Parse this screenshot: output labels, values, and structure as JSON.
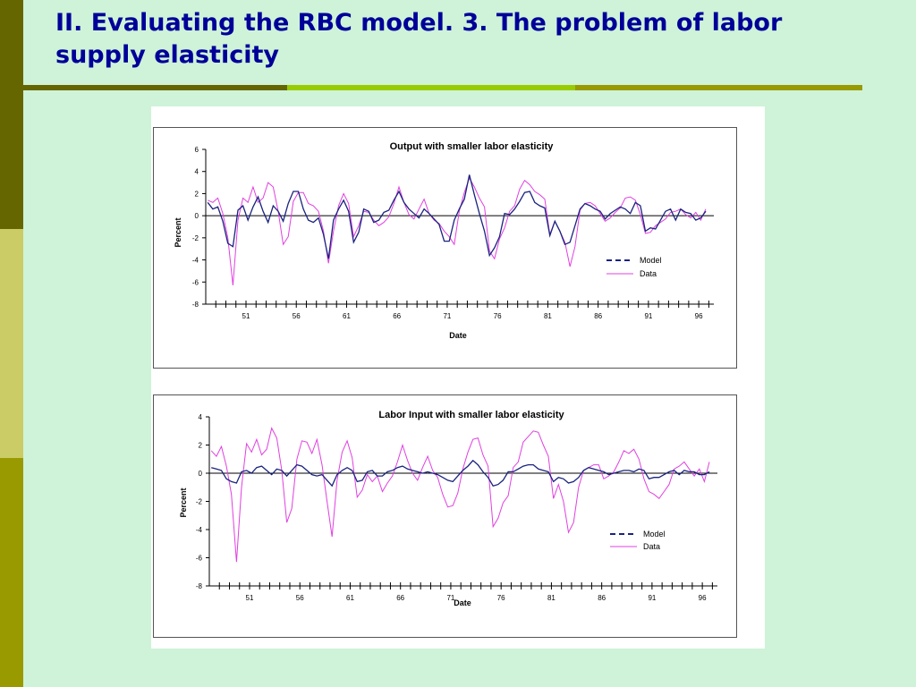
{
  "slide": {
    "title": "II. Evaluating the RBC model. 3. The problem of labor supply elasticity",
    "colors": {
      "background": "#cef3d8",
      "title": "#000099",
      "side_bar": [
        "#666600",
        "#cccc66",
        "#999900"
      ],
      "rule": [
        "#666600",
        "#99cc00",
        "#999900"
      ]
    }
  },
  "chart_data": [
    {
      "type": "line",
      "title": "Output with smaller labor elasticity",
      "xlabel": "Date",
      "ylabel": "Percent",
      "xlim": [
        47,
        97.5
      ],
      "ylim": [
        -8,
        6
      ],
      "yticks": [
        6,
        4,
        2,
        0,
        -2,
        -4,
        -6,
        -8
      ],
      "xticks": [
        "51",
        "56",
        "61",
        "66",
        "71",
        "76",
        "81",
        "86",
        "91",
        "96"
      ],
      "legend": "lower-right",
      "grid": false,
      "series": [
        {
          "name": "Model",
          "style": "dashed",
          "color": "#1a237e",
          "x": [
            47.2,
            47.7,
            48.2,
            48.7,
            49.2,
            49.7,
            50.2,
            50.7,
            51.2,
            51.7,
            52.2,
            52.7,
            53.2,
            53.7,
            54.2,
            54.7,
            55.2,
            55.7,
            56.2,
            56.7,
            57.2,
            57.7,
            58.2,
            58.7,
            59.2,
            59.7,
            60.2,
            60.7,
            61.2,
            61.7,
            62.2,
            62.7,
            63.2,
            63.7,
            64.2,
            64.7,
            65.2,
            65.7,
            66.2,
            66.7,
            67.2,
            67.7,
            68.2,
            68.7,
            69.2,
            69.7,
            70.2,
            70.7,
            71.2,
            71.7,
            72.2,
            72.7,
            73.2,
            73.7,
            74.2,
            74.7,
            75.2,
            75.7,
            76.2,
            76.7,
            77.2,
            77.7,
            78.2,
            78.7,
            79.2,
            79.7,
            80.2,
            80.7,
            81.2,
            81.7,
            82.2,
            82.7,
            83.2,
            83.7,
            84.2,
            84.7,
            85.2,
            85.7,
            86.2,
            86.7,
            87.2,
            87.7,
            88.2,
            88.7,
            89.2,
            89.7,
            90.2,
            90.7,
            91.2,
            91.7,
            92.2,
            92.7,
            93.2,
            93.7,
            94.2,
            94.7,
            95.2,
            95.7,
            96.2,
            96.7
          ],
          "y": [
            1.2,
            0.6,
            0.8,
            -0.5,
            -2.5,
            -2.8,
            0.5,
            0.9,
            -0.4,
            0.8,
            1.7,
            0.4,
            -0.6,
            0.9,
            0.4,
            -0.5,
            1.1,
            2.2,
            2.2,
            0.6,
            -0.4,
            -0.6,
            -0.2,
            -1.7,
            -3.9,
            -0.4,
            0.6,
            1.4,
            0.4,
            -2.4,
            -1.5,
            0.6,
            0.4,
            -0.6,
            -0.4,
            0.3,
            0.5,
            1.4,
            2.2,
            1.2,
            0.6,
            0.2,
            -0.2,
            0.6,
            0.2,
            -0.3,
            -0.8,
            -2.3,
            -2.3,
            -0.4,
            0.6,
            1.5,
            3.7,
            1.9,
            0.2,
            -1.4,
            -3.6,
            -2.9,
            -1.9,
            0.2,
            0.1,
            0.6,
            1.3,
            2.1,
            2.2,
            1.2,
            0.9,
            0.7,
            -1.8,
            -0.5,
            -1.4,
            -2.6,
            -2.4,
            -0.9,
            0.6,
            1.1,
            0.9,
            0.6,
            0.4,
            -0.3,
            0.2,
            0.5,
            0.8,
            0.6,
            0.2,
            1.2,
            0.9,
            -1.4,
            -1.1,
            -1.2,
            -0.4,
            0.4,
            0.6,
            -0.4,
            0.6,
            0.3,
            0.2,
            -0.4,
            -0.2,
            0.4
          ]
        },
        {
          "name": "Data",
          "style": "solid",
          "color": "#e040e0",
          "x": [
            47.2,
            47.7,
            48.2,
            48.7,
            49.2,
            49.7,
            50.2,
            50.7,
            51.2,
            51.7,
            52.2,
            52.7,
            53.2,
            53.7,
            54.2,
            54.7,
            55.2,
            55.7,
            56.2,
            56.7,
            57.2,
            57.7,
            58.2,
            58.7,
            59.2,
            59.7,
            60.2,
            60.7,
            61.2,
            61.7,
            62.2,
            62.7,
            63.2,
            63.7,
            64.2,
            64.7,
            65.2,
            65.7,
            66.2,
            66.7,
            67.2,
            67.7,
            68.2,
            68.7,
            69.2,
            69.7,
            70.2,
            70.7,
            71.2,
            71.7,
            72.2,
            72.7,
            73.2,
            73.7,
            74.2,
            74.7,
            75.2,
            75.7,
            76.2,
            76.7,
            77.2,
            77.7,
            78.2,
            78.7,
            79.2,
            79.7,
            80.2,
            80.7,
            81.2,
            81.7,
            82.2,
            82.7,
            83.2,
            83.7,
            84.2,
            84.7,
            85.2,
            85.7,
            86.2,
            86.7,
            87.2,
            87.7,
            88.2,
            88.7,
            89.2,
            89.7,
            90.2,
            90.7,
            91.2,
            91.7,
            92.2,
            92.7,
            93.2,
            93.7,
            94.2,
            94.7,
            95.2,
            95.7,
            96.2,
            96.7
          ],
          "y": [
            1.4,
            1.2,
            1.6,
            0.2,
            -2.0,
            -6.3,
            -0.4,
            1.6,
            1.2,
            2.6,
            1.2,
            1.6,
            3.0,
            2.6,
            0.4,
            -2.6,
            -1.9,
            1.3,
            2.1,
            2.1,
            1.1,
            0.9,
            0.4,
            -1.4,
            -4.3,
            -1.4,
            0.9,
            2.0,
            1.1,
            -1.9,
            -0.9,
            0.4,
            0.3,
            -0.4,
            -0.9,
            -0.6,
            -0.1,
            1.1,
            2.6,
            1.2,
            0.1,
            -0.3,
            0.6,
            1.5,
            0.2,
            -0.4,
            -0.7,
            -1.4,
            -1.9,
            -2.6,
            0.4,
            2.1,
            3.4,
            2.6,
            1.6,
            0.8,
            -3.2,
            -3.9,
            -2.1,
            -1.1,
            0.4,
            0.9,
            2.4,
            3.2,
            2.8,
            2.2,
            1.9,
            1.5,
            -1.7,
            -0.5,
            -1.4,
            -2.4,
            -4.6,
            -2.8,
            0.5,
            1.1,
            1.2,
            0.9,
            0.2,
            -0.5,
            -0.2,
            0.3,
            0.7,
            1.6,
            1.7,
            1.4,
            0.1,
            -1.6,
            -1.5,
            -0.9,
            -0.6,
            -0.3,
            0.3,
            0.4,
            0.6,
            0.1,
            -0.2,
            0.3,
            -0.4,
            0.6
          ]
        }
      ]
    },
    {
      "type": "line",
      "title": "Labor Input with smaller labor elasticity",
      "xlabel": "Date",
      "ylabel": "Percent",
      "xlim": [
        47,
        97.5
      ],
      "ylim": [
        -8,
        4
      ],
      "yticks": [
        4,
        2,
        0,
        -2,
        -4,
        -6,
        -8
      ],
      "xticks": [
        "51",
        "56",
        "61",
        "66",
        "71",
        "76",
        "81",
        "86",
        "91",
        "96"
      ],
      "legend": "lower-right",
      "grid": false,
      "series": [
        {
          "name": "Model",
          "style": "dashed",
          "color": "#1a237e",
          "x": [
            47.2,
            47.7,
            48.2,
            48.7,
            49.2,
            49.7,
            50.2,
            50.7,
            51.2,
            51.7,
            52.2,
            52.7,
            53.2,
            53.7,
            54.2,
            54.7,
            55.2,
            55.7,
            56.2,
            56.7,
            57.2,
            57.7,
            58.2,
            58.7,
            59.2,
            59.7,
            60.2,
            60.7,
            61.2,
            61.7,
            62.2,
            62.7,
            63.2,
            63.7,
            64.2,
            64.7,
            65.2,
            65.7,
            66.2,
            66.7,
            67.2,
            67.7,
            68.2,
            68.7,
            69.2,
            69.7,
            70.2,
            70.7,
            71.2,
            71.7,
            72.2,
            72.7,
            73.2,
            73.7,
            74.2,
            74.7,
            75.2,
            75.7,
            76.2,
            76.7,
            77.2,
            77.7,
            78.2,
            78.7,
            79.2,
            79.7,
            80.2,
            80.7,
            81.2,
            81.7,
            82.2,
            82.7,
            83.2,
            83.7,
            84.2,
            84.7,
            85.2,
            85.7,
            86.2,
            86.7,
            87.2,
            87.7,
            88.2,
            88.7,
            89.2,
            89.7,
            90.2,
            90.7,
            91.2,
            91.7,
            92.2,
            92.7,
            93.2,
            93.7,
            94.2,
            94.7,
            95.2,
            95.7,
            96.2,
            96.7
          ],
          "y": [
            0.4,
            0.3,
            0.2,
            -0.4,
            -0.6,
            -0.7,
            0.1,
            0.2,
            0.0,
            0.4,
            0.5,
            0.2,
            -0.1,
            0.3,
            0.2,
            -0.2,
            0.2,
            0.6,
            0.5,
            0.2,
            -0.1,
            -0.2,
            -0.1,
            -0.5,
            -0.9,
            -0.1,
            0.2,
            0.4,
            0.2,
            -0.6,
            -0.5,
            0.1,
            0.2,
            -0.2,
            -0.2,
            0.1,
            0.2,
            0.4,
            0.5,
            0.3,
            0.2,
            0.1,
            0.0,
            0.1,
            0.0,
            -0.1,
            -0.3,
            -0.5,
            -0.6,
            -0.2,
            0.2,
            0.5,
            0.9,
            0.6,
            0.1,
            -0.3,
            -0.9,
            -0.8,
            -0.5,
            0.1,
            0.1,
            0.3,
            0.5,
            0.6,
            0.6,
            0.3,
            0.2,
            0.1,
            -0.6,
            -0.3,
            -0.4,
            -0.7,
            -0.6,
            -0.3,
            0.2,
            0.4,
            0.3,
            0.2,
            0.1,
            -0.1,
            0.0,
            0.1,
            0.2,
            0.2,
            0.1,
            0.3,
            0.2,
            -0.4,
            -0.3,
            -0.3,
            -0.1,
            0.1,
            0.2,
            -0.1,
            0.2,
            0.1,
            0.1,
            -0.1,
            -0.1,
            0.1
          ]
        },
        {
          "name": "Data",
          "style": "solid",
          "color": "#e040e0",
          "x": [
            47.2,
            47.7,
            48.2,
            48.7,
            49.2,
            49.7,
            50.2,
            50.7,
            51.2,
            51.7,
            52.2,
            52.7,
            53.2,
            53.7,
            54.2,
            54.7,
            55.2,
            55.7,
            56.2,
            56.7,
            57.2,
            57.7,
            58.2,
            58.7,
            59.2,
            59.7,
            60.2,
            60.7,
            61.2,
            61.7,
            62.2,
            62.7,
            63.2,
            63.7,
            64.2,
            64.7,
            65.2,
            65.7,
            66.2,
            66.7,
            67.2,
            67.7,
            68.2,
            68.7,
            69.2,
            69.7,
            70.2,
            70.7,
            71.2,
            71.7,
            72.2,
            72.7,
            73.2,
            73.7,
            74.2,
            74.7,
            75.2,
            75.7,
            76.2,
            76.7,
            77.2,
            77.7,
            78.2,
            78.7,
            79.2,
            79.7,
            80.2,
            80.7,
            81.2,
            81.7,
            82.2,
            82.7,
            83.2,
            83.7,
            84.2,
            84.7,
            85.2,
            85.7,
            86.2,
            86.7,
            87.2,
            87.7,
            88.2,
            88.7,
            89.2,
            89.7,
            90.2,
            90.7,
            91.2,
            91.7,
            92.2,
            92.7,
            93.2,
            93.7,
            94.2,
            94.7,
            95.2,
            95.7,
            96.2,
            96.7
          ],
          "y": [
            1.6,
            1.2,
            1.9,
            0.5,
            -1.5,
            -6.3,
            -1.0,
            2.1,
            1.5,
            2.4,
            1.3,
            1.7,
            3.2,
            2.5,
            0.2,
            -3.5,
            -2.5,
            1.0,
            2.3,
            2.2,
            1.4,
            2.4,
            0.6,
            -2.0,
            -4.5,
            -0.5,
            1.5,
            2.3,
            1.1,
            -1.7,
            -1.2,
            -0.1,
            -0.6,
            -0.2,
            -1.3,
            -0.7,
            -0.2,
            0.8,
            2.0,
            0.9,
            0.0,
            -0.5,
            0.4,
            1.2,
            0.2,
            -0.3,
            -1.5,
            -2.4,
            -2.3,
            -1.4,
            0.3,
            1.5,
            2.4,
            2.5,
            1.3,
            0.5,
            -3.8,
            -3.2,
            -2.1,
            -1.6,
            0.4,
            0.8,
            2.2,
            2.6,
            3.0,
            2.9,
            2.0,
            1.2,
            -1.8,
            -0.8,
            -2.0,
            -4.2,
            -3.5,
            -1.0,
            0.2,
            0.4,
            0.6,
            0.6,
            -0.4,
            -0.2,
            0.1,
            0.8,
            1.6,
            1.4,
            1.7,
            1.0,
            -0.4,
            -1.3,
            -1.5,
            -1.8,
            -1.3,
            -0.8,
            0.3,
            0.5,
            0.8,
            0.3,
            -0.2,
            0.3,
            -0.6,
            0.8
          ]
        }
      ]
    }
  ]
}
